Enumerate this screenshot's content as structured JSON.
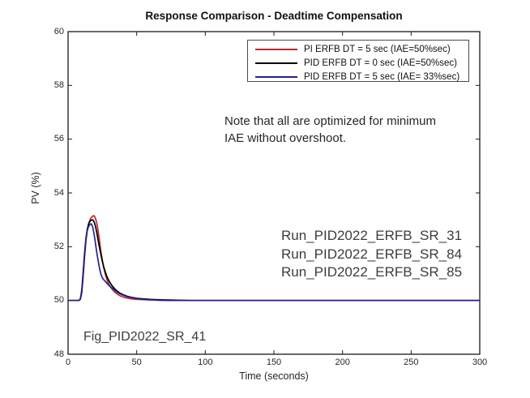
{
  "figure": {
    "title": "Response Comparison - Deadtime Compensation"
  },
  "annotations": {
    "note_line1": "Note that all are optimized for minimum",
    "note_line2": "IAE without overshoot.",
    "run_line1": "Run_PID2022_ERFB_SR_31",
    "run_line2": "Run_PID2022_ERFB_SR_84",
    "run_line3": "Run_PID2022_ERFB_SR_85",
    "fig_label": "Fig_PID2022_SR_41"
  },
  "chart_data": {
    "type": "line",
    "title": "Response Comparison - Deadtime Compensation",
    "xlabel": "Time (seconds)",
    "ylabel": "PV (%)",
    "xlim": [
      0,
      300
    ],
    "ylim": [
      48,
      60
    ],
    "xticks": [
      0,
      50,
      100,
      150,
      200,
      250,
      300
    ],
    "yticks": [
      48,
      50,
      52,
      54,
      56,
      58,
      60
    ],
    "grid": false,
    "legend_position": "upper right",
    "axis_color": "#1a1a1a",
    "series": [
      {
        "name": "PI ERFB DT = 5 sec (IAE=50%sec)",
        "color": "#c1272d",
        "points": [
          [
            0,
            50
          ],
          [
            8,
            50
          ],
          [
            9,
            50.05
          ],
          [
            10,
            50.3
          ],
          [
            11,
            50.9
          ],
          [
            12,
            51.6
          ],
          [
            13,
            52.2
          ],
          [
            14,
            52.6
          ],
          [
            15,
            52.85
          ],
          [
            16,
            53.0
          ],
          [
            17,
            53.09
          ],
          [
            18,
            53.14
          ],
          [
            19,
            53.15
          ],
          [
            20,
            53.05
          ],
          [
            21,
            52.85
          ],
          [
            22,
            52.55
          ],
          [
            23,
            52.2
          ],
          [
            24,
            51.8
          ],
          [
            25,
            51.5
          ],
          [
            26,
            51.22
          ],
          [
            27,
            51.0
          ],
          [
            28,
            50.83
          ],
          [
            29,
            50.69
          ],
          [
            30,
            50.58
          ],
          [
            32,
            50.42
          ],
          [
            34,
            50.31
          ],
          [
            36,
            50.23
          ],
          [
            38,
            50.17
          ],
          [
            40,
            50.13
          ],
          [
            43,
            50.09
          ],
          [
            46,
            50.06
          ],
          [
            50,
            50.04
          ],
          [
            55,
            50.03
          ],
          [
            60,
            50.02
          ],
          [
            65,
            50.01
          ],
          [
            72,
            50
          ],
          [
            100,
            50
          ],
          [
            150,
            50
          ],
          [
            200,
            50
          ],
          [
            250,
            50
          ],
          [
            300,
            50
          ]
        ]
      },
      {
        "name": "PID ERFB DT = 0 sec (IAE=50%sec)",
        "color": "#000000",
        "points": [
          [
            0,
            50
          ],
          [
            8,
            50
          ],
          [
            9,
            50.05
          ],
          [
            10,
            50.32
          ],
          [
            11,
            50.95
          ],
          [
            12,
            51.68
          ],
          [
            13,
            52.28
          ],
          [
            14,
            52.65
          ],
          [
            15,
            52.85
          ],
          [
            16,
            52.95
          ],
          [
            17,
            52.99
          ],
          [
            18,
            53.0
          ],
          [
            19,
            52.92
          ],
          [
            20,
            52.75
          ],
          [
            21,
            52.5
          ],
          [
            22,
            52.2
          ],
          [
            23,
            51.95
          ],
          [
            24,
            51.7
          ],
          [
            25,
            51.45
          ],
          [
            26,
            51.25
          ],
          [
            27,
            51.08
          ],
          [
            28,
            50.93
          ],
          [
            29,
            50.81
          ],
          [
            30,
            50.71
          ],
          [
            32,
            50.55
          ],
          [
            34,
            50.43
          ],
          [
            36,
            50.34
          ],
          [
            38,
            50.27
          ],
          [
            40,
            50.22
          ],
          [
            43,
            50.16
          ],
          [
            46,
            50.12
          ],
          [
            50,
            50.08
          ],
          [
            55,
            50.06
          ],
          [
            60,
            50.04
          ],
          [
            65,
            50.03
          ],
          [
            70,
            50.02
          ],
          [
            80,
            50.01
          ],
          [
            90,
            50
          ],
          [
            150,
            50
          ],
          [
            200,
            50
          ],
          [
            250,
            50
          ],
          [
            300,
            50
          ]
        ]
      },
      {
        "name": "PID ERFB DT = 5 sec (IAE= 33%sec)",
        "color": "#23238e",
        "points": [
          [
            0,
            50
          ],
          [
            8,
            50
          ],
          [
            9,
            50.06
          ],
          [
            10,
            50.4
          ],
          [
            11,
            51.05
          ],
          [
            12,
            51.75
          ],
          [
            13,
            52.3
          ],
          [
            14,
            52.6
          ],
          [
            15,
            52.76
          ],
          [
            16,
            52.83
          ],
          [
            17,
            52.85
          ],
          [
            18,
            52.72
          ],
          [
            19,
            52.45
          ],
          [
            20,
            52.1
          ],
          [
            21,
            51.75
          ],
          [
            22,
            51.45
          ],
          [
            23,
            51.18
          ],
          [
            24,
            50.97
          ],
          [
            25,
            50.84
          ],
          [
            26,
            50.77
          ],
          [
            27,
            50.72
          ],
          [
            29,
            50.6
          ],
          [
            31,
            50.5
          ],
          [
            33,
            50.42
          ],
          [
            36,
            50.3
          ],
          [
            39,
            50.22
          ],
          [
            43,
            50.14
          ],
          [
            48,
            50.09
          ],
          [
            53,
            50.05
          ],
          [
            58,
            50.03
          ],
          [
            65,
            50.01
          ],
          [
            75,
            50
          ],
          [
            100,
            50
          ],
          [
            150,
            50
          ],
          [
            200,
            50
          ],
          [
            250,
            50
          ],
          [
            300,
            50
          ]
        ]
      }
    ]
  }
}
